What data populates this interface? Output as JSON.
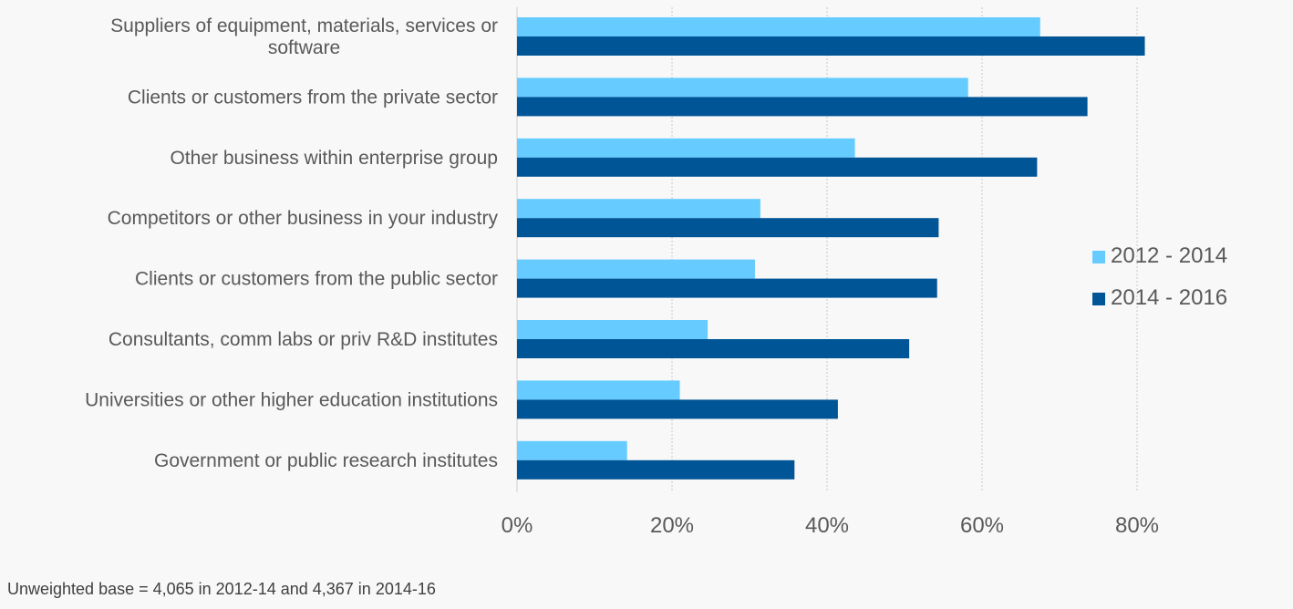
{
  "chart_data": {
    "type": "bar",
    "orientation": "horizontal",
    "categories": [
      "Suppliers of equipment, materials, services or software",
      "Clients or customers  from the private sector",
      "Other business within enterprise group",
      "Competitors or other business in your industry",
      "Clients or customers  from the public sector",
      "Consultants, comm labs or priv R&D institutes",
      "Universities or other higher education institutions",
      "Government or public research institutes"
    ],
    "category_lines": [
      [
        "Suppliers of equipment, materials, services or",
        "software"
      ],
      [
        "Clients or customers  from the private sector"
      ],
      [
        "Other business within enterprise group"
      ],
      [
        "Competitors or other business in your industry"
      ],
      [
        "Clients or customers  from the public sector"
      ],
      [
        "Consultants, comm labs or priv R&D institutes"
      ],
      [
        "Universities or other higher education institutions"
      ],
      [
        "Government or public research institutes"
      ]
    ],
    "series": [
      {
        "name": "2012 - 2014",
        "color": "#66ccff",
        "values": [
          67.5,
          58.2,
          43.6,
          31.4,
          30.7,
          24.6,
          21.0,
          14.2
        ]
      },
      {
        "name": "2014 - 2016",
        "color": "#005596",
        "values": [
          81.0,
          73.6,
          67.1,
          54.4,
          54.2,
          50.6,
          41.4,
          35.8
        ]
      }
    ],
    "xlim": [
      0,
      100
    ],
    "xticks": [
      0,
      20,
      40,
      60,
      80
    ],
    "xtick_labels": [
      "0%",
      "20%",
      "40%",
      "60%",
      "80%"
    ],
    "grid": "vertical dotted",
    "legend_position": "right"
  },
  "footnote": "Unweighted base = 4,065 in 2012-14 and 4,367 in 2014-16"
}
